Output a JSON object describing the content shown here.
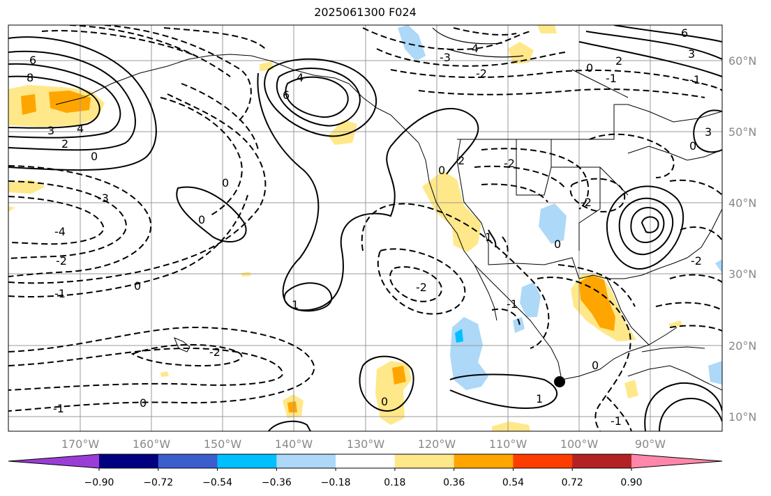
{
  "title": "2025061300 F024",
  "longitude_labels": [
    "170°W",
    "160°W",
    "150°W",
    "140°W",
    "130°W",
    "120°W",
    "110°W",
    "100°W",
    "90°W"
  ],
  "latitude_labels": [
    "60°N",
    "50°N",
    "40°N",
    "30°N",
    "20°N",
    "10°N"
  ],
  "colorbar": {
    "tick_labels": [
      "−0.90",
      "−0.72",
      "−0.54",
      "−0.36",
      "−0.18",
      "0.18",
      "0.36",
      "0.54",
      "0.72",
      "0.90"
    ],
    "colors": [
      "#9a3dd6",
      "#000080",
      "#3a5fcd",
      "#00bfff",
      "#add8f8",
      "#ffffff",
      "#ffe88a",
      "#ffa500",
      "#ff3c00",
      "#b22222",
      "#ff88aa"
    ]
  },
  "contour_labels": [
    {
      "text": "6"
    },
    {
      "text": "8"
    },
    {
      "text": "3"
    },
    {
      "text": "4"
    },
    {
      "text": "2"
    },
    {
      "text": "0"
    },
    {
      "text": "-3"
    },
    {
      "text": "-4"
    },
    {
      "text": "-2"
    },
    {
      "text": "-1"
    },
    {
      "text": "0"
    },
    {
      "text": "-2"
    },
    {
      "text": "-1"
    },
    {
      "text": "0"
    },
    {
      "text": "4"
    },
    {
      "text": "6"
    },
    {
      "text": "0"
    },
    {
      "text": "0"
    },
    {
      "text": "1"
    },
    {
      "text": "-2"
    },
    {
      "text": "-3"
    },
    {
      "text": "-4"
    },
    {
      "text": "-2"
    },
    {
      "text": "-1"
    },
    {
      "text": "0"
    },
    {
      "text": "-1"
    },
    {
      "text": "2"
    },
    {
      "text": "3"
    },
    {
      "text": "6"
    },
    {
      "text": "3"
    },
    {
      "text": "0"
    },
    {
      "text": "-2"
    },
    {
      "text": "-1"
    },
    {
      "text": "-2"
    },
    {
      "text": "0"
    },
    {
      "text": "2"
    },
    {
      "text": "1"
    },
    {
      "text": "0"
    },
    {
      "text": "-2"
    },
    {
      "text": "-1"
    },
    {
      "text": "0"
    },
    {
      "text": "0"
    },
    {
      "text": "1"
    }
  ],
  "marker": {
    "name": "location-dot"
  }
}
